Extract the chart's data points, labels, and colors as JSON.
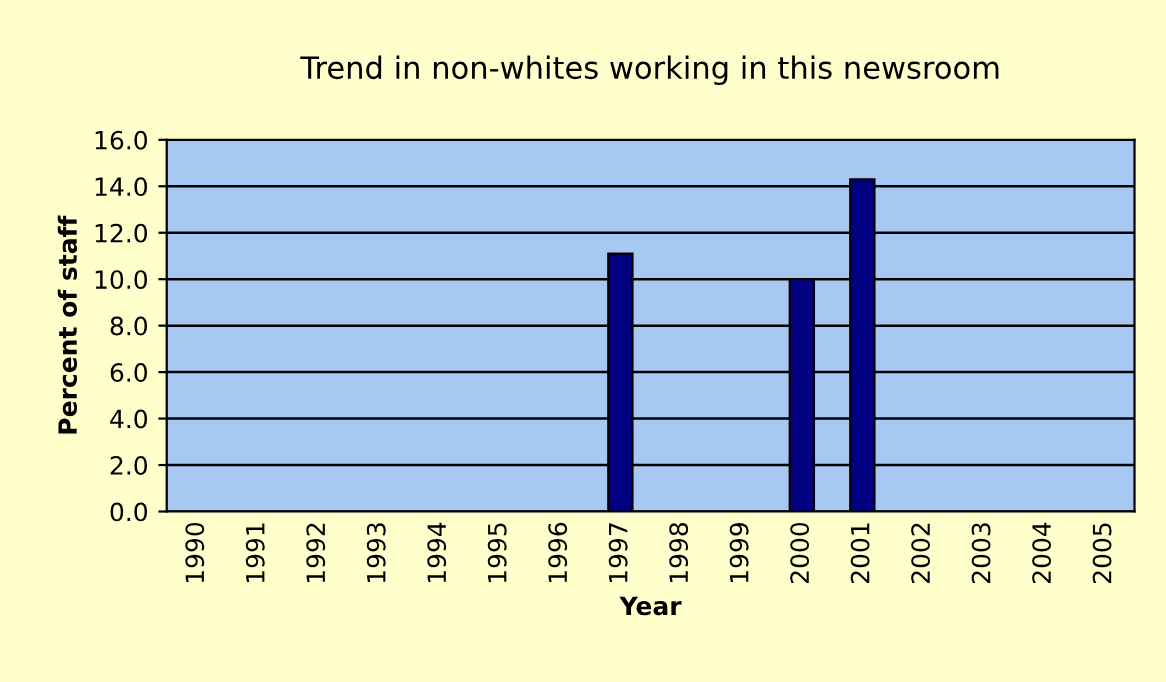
{
  "chart_data": {
    "type": "bar",
    "title": "Trend in non-whites working in this newsroom",
    "xlabel": "Year",
    "ylabel": "Percent of staff",
    "categories": [
      "1990",
      "1991",
      "1992",
      "1993",
      "1994",
      "1995",
      "1996",
      "1997",
      "1998",
      "1999",
      "2000",
      "2001",
      "2002",
      "2003",
      "2004",
      "2005"
    ],
    "values": [
      null,
      null,
      null,
      null,
      null,
      null,
      null,
      11.1,
      null,
      null,
      10.0,
      14.3,
      null,
      null,
      null,
      null
    ],
    "color": "#000080",
    "ylim": [
      0,
      16
    ],
    "yticks": [
      {
        "value": 0,
        "label": "0.0"
      },
      {
        "value": 2,
        "label": "2.0"
      },
      {
        "value": 4,
        "label": "4.0"
      },
      {
        "value": 6,
        "label": "6.0"
      },
      {
        "value": 8,
        "label": "8.0"
      },
      {
        "value": 10,
        "label": "10.0"
      },
      {
        "value": 12,
        "label": "12.0"
      },
      {
        "value": 14,
        "label": "14.0"
      },
      {
        "value": 16,
        "label": "16.0"
      }
    ],
    "grid": "y"
  }
}
